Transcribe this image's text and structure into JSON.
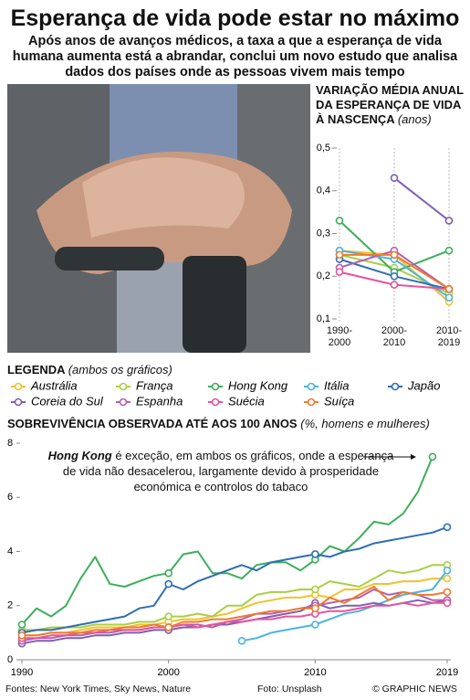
{
  "header": {
    "title": "Esperança de vida pode estar no máximo",
    "subtitle": "Após anos de avanços médicos, a taxa a que a esperança de vida humana aumenta está a abrandar, conclui um novo estudo que analisa dados dos países onde as pessoas vivem mais tempo"
  },
  "legend": {
    "title": "LEGENDA",
    "note": "(ambos os gráficos)"
  },
  "chart_data": [
    {
      "type": "line",
      "title": "VARIAÇÃO MÉDIA ANUAL DA ESPERANÇA DE VIDA À NASCENÇA",
      "unit": "(anos)",
      "categories": [
        "1990-2000",
        "2000-2010",
        "2010-2019"
      ],
      "ylim": [
        0.1,
        0.5
      ],
      "yticks": [
        {
          "value": 0.1,
          "label": "0,1"
        },
        {
          "value": 0.2,
          "label": "0,2"
        },
        {
          "value": 0.3,
          "label": "0,3"
        },
        {
          "value": 0.4,
          "label": "0,4"
        },
        {
          "value": 0.5,
          "label": "0,5"
        }
      ],
      "series": [
        {
          "name": "Austrália",
          "color": "#f2c12e",
          "values": [
            0.26,
            0.25,
            0.14
          ]
        },
        {
          "name": "França",
          "color": "#a8cf45",
          "values": [
            0.25,
            0.22,
            0.16
          ]
        },
        {
          "name": "Hong Kong",
          "color": "#3dae5a",
          "values": [
            0.33,
            0.21,
            0.26
          ]
        },
        {
          "name": "Itália",
          "color": "#4cb3e0",
          "values": [
            0.26,
            0.24,
            0.15
          ]
        },
        {
          "name": "Japão",
          "color": "#2e6db4",
          "values": [
            0.24,
            0.2,
            0.17
          ]
        },
        {
          "name": "Coreia do Sul",
          "color": "#7d5fb3",
          "values": [
            null,
            0.43,
            0.33
          ]
        },
        {
          "name": "Espanha",
          "color": "#b45fb0",
          "values": [
            0.22,
            0.26,
            0.17
          ]
        },
        {
          "name": "Suécia",
          "color": "#e8539a",
          "values": [
            0.21,
            0.18,
            0.17
          ]
        },
        {
          "name": "Suíça",
          "color": "#ef7a2b",
          "values": [
            0.25,
            0.25,
            0.17
          ]
        }
      ]
    },
    {
      "type": "line",
      "title": "SOBREVIVÊNCIA OBSERVADA ATÉ AOS 100 ANOS",
      "unit": "(%, homens e mulheres)",
      "annotation_bold": "Hong Kong",
      "annotation": "é exceção, em ambos os gráficos, onde a esperança de vida não desacelerou, largamente devido à prosperidade económica e controlos do tabaco",
      "x": [
        1990,
        1991,
        1992,
        1993,
        1994,
        1995,
        1996,
        1997,
        1998,
        1999,
        2000,
        2001,
        2002,
        2003,
        2004,
        2005,
        2006,
        2007,
        2008,
        2009,
        2010,
        2011,
        2012,
        2013,
        2014,
        2015,
        2016,
        2017,
        2018,
        2019
      ],
      "xlim": [
        1990,
        2019
      ],
      "xticks": [
        1990,
        2000,
        2010,
        2019
      ],
      "ylim": [
        0,
        8
      ],
      "yticks": [
        0,
        2,
        4,
        6,
        8
      ],
      "series": [
        {
          "color": "#f2c12e",
          "values": [
            0.9,
            0.9,
            1.0,
            1.0,
            1.1,
            1.2,
            1.2,
            1.2,
            1.3,
            1.3,
            1.4,
            1.5,
            1.5,
            1.6,
            1.7,
            1.9,
            2.1,
            2.2,
            2.3,
            2.3,
            2.4,
            2.3,
            2.6,
            2.6,
            2.8,
            2.8,
            2.9,
            2.9,
            3.0,
            3.0
          ]
        },
        {
          "color": "#a8cf45",
          "values": [
            1.1,
            1.1,
            1.2,
            1.2,
            1.2,
            1.3,
            1.3,
            1.3,
            1.4,
            1.4,
            1.6,
            1.6,
            1.7,
            1.6,
            2.0,
            2.0,
            2.4,
            2.5,
            2.5,
            2.6,
            2.6,
            2.9,
            2.8,
            2.7,
            3.0,
            3.3,
            3.2,
            3.3,
            3.5,
            3.5
          ]
        },
        {
          "color": "#3dae5a",
          "values": [
            1.3,
            1.9,
            1.6,
            2.0,
            3.0,
            3.8,
            2.8,
            2.7,
            2.9,
            3.1,
            3.2,
            3.9,
            4.0,
            3.2,
            3.2,
            3.0,
            3.5,
            3.6,
            3.6,
            3.3,
            3.7,
            4.2,
            4.0,
            4.5,
            5.1,
            5.0,
            5.4,
            6.2,
            7.5,
            null
          ]
        },
        {
          "color": "#4cb3e0",
          "values": [
            null,
            null,
            null,
            null,
            null,
            null,
            null,
            null,
            null,
            null,
            null,
            null,
            null,
            null,
            null,
            0.7,
            0.8,
            1.0,
            1.1,
            1.2,
            1.3,
            1.5,
            1.7,
            1.8,
            2.0,
            2.2,
            2.4,
            2.5,
            2.6,
            3.3
          ]
        },
        {
          "color": "#2e6db4",
          "values": [
            1.0,
            1.1,
            1.1,
            1.2,
            1.3,
            1.4,
            1.5,
            1.6,
            1.9,
            2.0,
            2.8,
            2.6,
            2.9,
            3.1,
            3.3,
            3.5,
            3.3,
            3.6,
            3.7,
            3.8,
            3.9,
            3.8,
            4.0,
            4.1,
            4.3,
            4.4,
            4.5,
            4.6,
            4.7,
            4.9
          ]
        },
        {
          "color": "#7d5fb3",
          "values": [
            0.6,
            0.7,
            0.7,
            0.8,
            0.8,
            0.9,
            0.9,
            1.0,
            1.0,
            1.1,
            1.1,
            1.2,
            1.2,
            1.3,
            1.3,
            1.4,
            1.5,
            1.6,
            1.7,
            1.8,
            2.1,
            1.9,
            2.0,
            2.0,
            2.1,
            2.0,
            2.1,
            2.2,
            2.1,
            2.2
          ]
        },
        {
          "color": "#b45fb0",
          "values": [
            0.7,
            0.8,
            0.8,
            0.9,
            0.9,
            1.0,
            1.0,
            1.1,
            1.1,
            1.2,
            1.2,
            1.3,
            1.3,
            1.2,
            1.4,
            1.5,
            1.7,
            1.7,
            1.8,
            1.9,
            2.0,
            2.1,
            2.2,
            2.3,
            2.6,
            2.4,
            2.5,
            2.4,
            2.2,
            2.2
          ]
        },
        {
          "color": "#e8539a",
          "values": [
            0.8,
            0.8,
            0.9,
            0.9,
            1.0,
            1.0,
            1.1,
            1.1,
            1.1,
            1.2,
            1.2,
            1.3,
            1.2,
            1.3,
            1.4,
            1.4,
            1.5,
            1.5,
            1.6,
            1.6,
            1.7,
            1.8,
            1.8,
            1.9,
            2.0,
            2.0,
            2.1,
            2.0,
            2.1,
            2.1
          ]
        },
        {
          "color": "#ef7a2b",
          "values": [
            0.9,
            0.9,
            1.0,
            1.0,
            1.0,
            1.1,
            1.1,
            1.2,
            1.2,
            1.3,
            1.2,
            1.4,
            1.4,
            1.5,
            1.5,
            1.6,
            1.7,
            1.8,
            1.8,
            1.9,
            1.9,
            2.3,
            2.1,
            2.4,
            2.7,
            2.2,
            2.5,
            2.4,
            2.4,
            2.5
          ]
        }
      ]
    }
  ],
  "footer": {
    "sources": "Fontes: New York Times, Sky News, Nature",
    "photo": "Foto: Unsplash",
    "credit": "© GRAPHIC NEWS"
  }
}
